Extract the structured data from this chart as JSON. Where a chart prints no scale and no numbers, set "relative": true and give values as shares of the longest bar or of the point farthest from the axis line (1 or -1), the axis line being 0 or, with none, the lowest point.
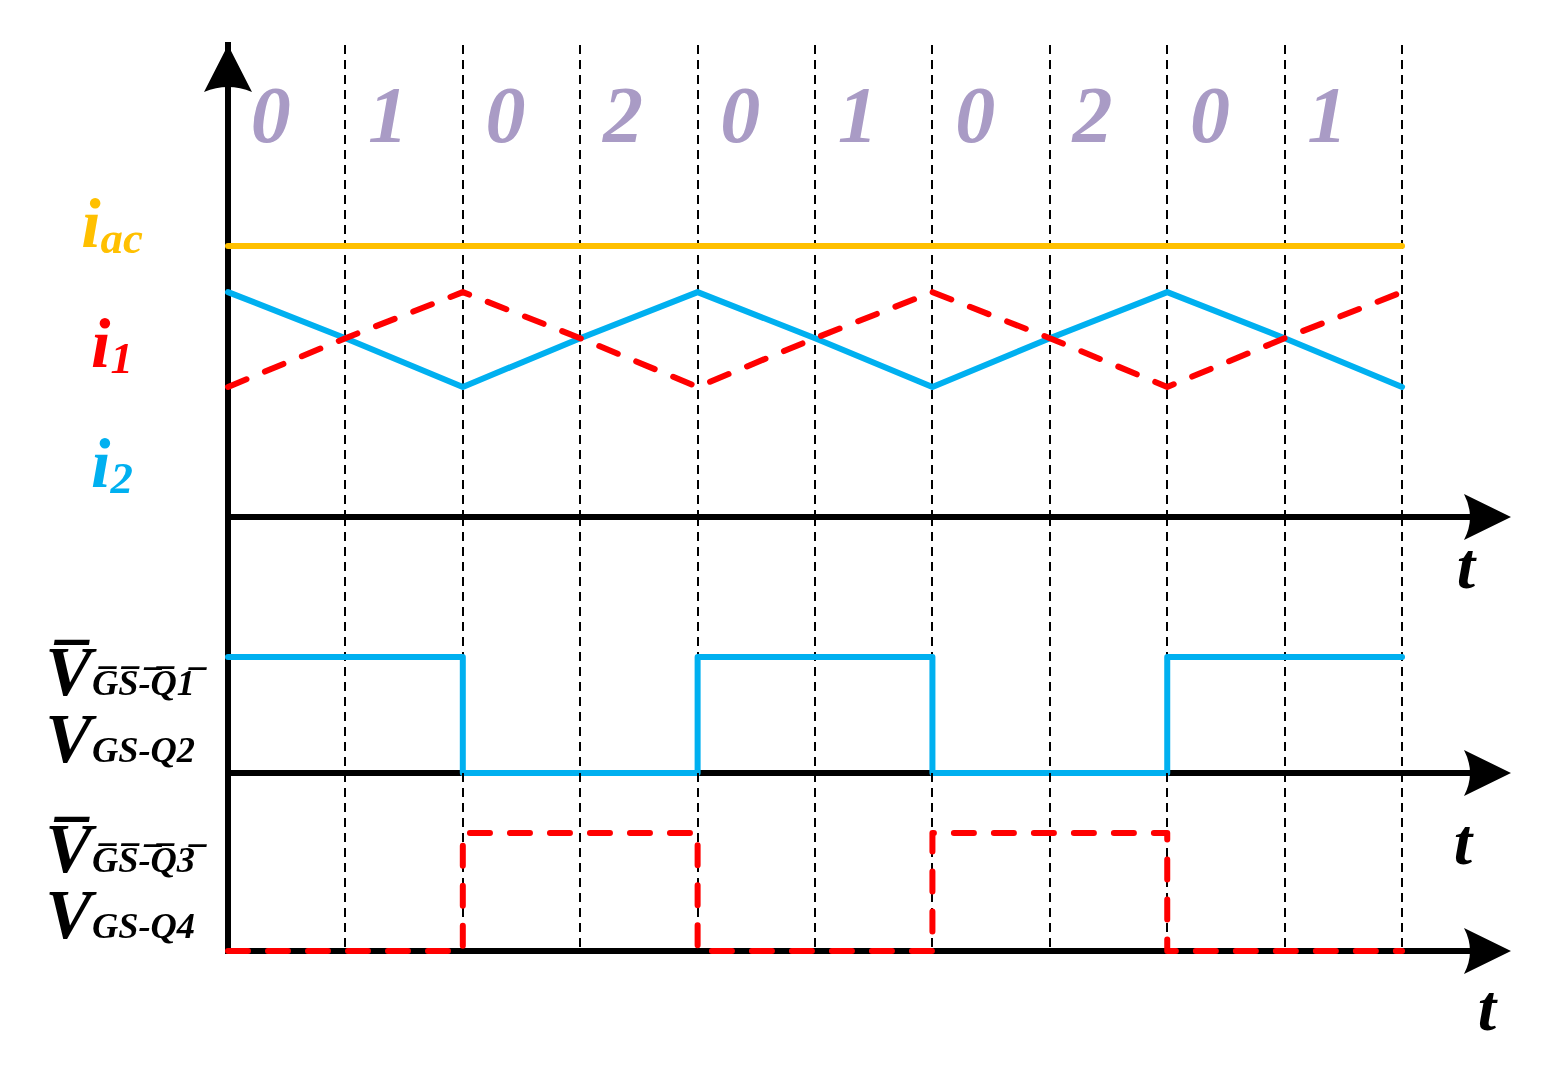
{
  "chart_data": [
    {
      "type": "line",
      "categories": [
        null,
        null,
        null,
        null,
        null,
        null,
        null,
        null,
        null,
        null,
        null
      ],
      "relative": true,
      "xlabel": "t",
      "grid": "x",
      "legend": false,
      "tick_labels": false,
      "marker": "none",
      "line_style": "solid",
      "annotations": [
        "0",
        "1",
        "0",
        "2",
        "0",
        "1",
        "0",
        "2",
        "0",
        "1"
      ],
      "series": [
        {
          "name": "i$_{ac}$",
          "color": "#ffc000",
          "values": [
            1,
            1,
            1,
            1,
            1,
            1,
            1,
            1,
            1,
            1,
            1
          ]
        },
        {
          "name": "i$_{1}$",
          "color": "#ff0000",
          "line_style": "dashed",
          "values": [
            0.48,
            0.66,
            0.83,
            0.66,
            0.48,
            0.66,
            0.83,
            0.66,
            0.48,
            0.66,
            0.83
          ]
        },
        {
          "name": "i$_{2}$",
          "color": "#00b0f0",
          "values": [
            0.83,
            0.66,
            0.48,
            0.66,
            0.83,
            0.66,
            0.48,
            0.66,
            0.83,
            0.66,
            0.48
          ]
        }
      ]
    },
    {
      "type": "step",
      "categories": [
        null,
        null,
        null,
        null,
        null,
        null,
        null,
        null,
        null,
        null,
        null
      ],
      "relative": true,
      "xlabel": "t",
      "ylabel": "V̅$_{G̅S̅-̅Q̅1̅}$\nV$_{GS-Q2}$",
      "grid": "x",
      "legend": false,
      "tick_labels": false,
      "marker": "none",
      "line_style": "solid",
      "series": [
        {
          "color": "#00b0f0",
          "values": [
            1,
            1,
            0,
            0,
            1,
            1,
            0,
            0,
            1,
            1,
            1
          ]
        }
      ]
    },
    {
      "type": "step",
      "categories": [
        null,
        null,
        null,
        null,
        null,
        null,
        null,
        null,
        null,
        null,
        null
      ],
      "relative": true,
      "xlabel": "t",
      "ylabel": "V̅$_{G̅S̅-̅Q̅3̅}$\nV$_{GS-Q4}$",
      "grid": "x",
      "legend": false,
      "tick_labels": false,
      "marker": "none",
      "line_style": "dashed",
      "series": [
        {
          "color": "#ff0000",
          "values": [
            0,
            0,
            1,
            1,
            0,
            0,
            1,
            1,
            0,
            0,
            0
          ]
        }
      ]
    }
  ]
}
